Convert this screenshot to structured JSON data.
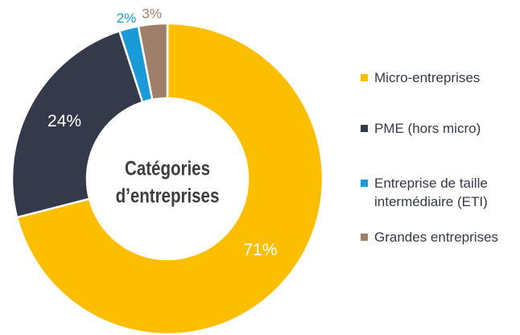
{
  "chart_data": {
    "type": "donut",
    "center_text": [
      "Catégories",
      "d’entreprises"
    ],
    "categories": [
      "Micro-entreprises",
      "PME (hors micro)",
      "Entreprise de taille intermédiaire (ETI)",
      "Grandes entreprises"
    ],
    "values": [
      71,
      24,
      2,
      3
    ],
    "value_labels": [
      "71%",
      "24%",
      "2%",
      "3%"
    ],
    "colors": [
      "#fdbe00",
      "#343a4a",
      "#1a9bd7",
      "#a07f6a"
    ],
    "legend": "right"
  }
}
